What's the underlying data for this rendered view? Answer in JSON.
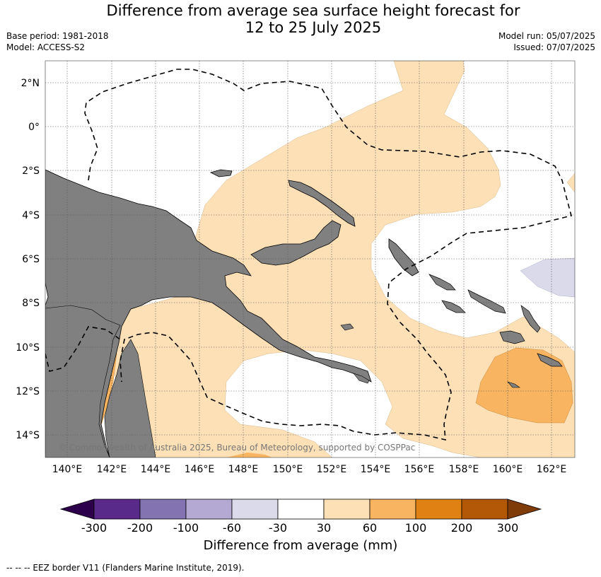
{
  "header": {
    "title_line1": "Difference from average sea surface height forecast for",
    "title_line2": "12 to 25 July 2025",
    "base_period": "Base period: 1981-2018",
    "model": "Model: ACCESS-S2",
    "model_run": "Model run: 05/07/2025",
    "issued": "Issued: 07/07/2025"
  },
  "map": {
    "lon_ticks": [
      "140°E",
      "142°E",
      "144°E",
      "146°E",
      "148°E",
      "150°E",
      "152°E",
      "154°E",
      "156°E",
      "158°E",
      "160°E",
      "162°E"
    ],
    "lat_ticks": [
      "2°N",
      "0°",
      "2°S",
      "4°S",
      "6°S",
      "8°S",
      "10°S",
      "12°S",
      "14°S"
    ],
    "copyright": "© Commonwealth of Australia 2025, Bureau of Meteorology, supported by COSPPac"
  },
  "colorbar": {
    "labels": [
      "-300",
      "-200",
      "-100",
      "-60",
      "-30",
      "30",
      "60",
      "100",
      "200",
      "300"
    ],
    "colors": [
      "#5a2a8a",
      "#8373b0",
      "#b3a9d3",
      "#dadaeb",
      "#ffffff",
      "#fde0b6",
      "#f8b460",
      "#e08213",
      "#b35806"
    ],
    "low_extend_color": "#2d004b",
    "high_extend_color": "#7f3b08",
    "title": "Difference from average (mm)"
  },
  "legend": {
    "eez": "--  --  -- EEZ border V11 (Flanders Marine Institute, 2019)."
  },
  "style": {
    "land": "#808080",
    "band_30_60": "#fde0b6",
    "band_60_100": "#f8b460",
    "band_neg60_neg30": "#dadaeb"
  }
}
